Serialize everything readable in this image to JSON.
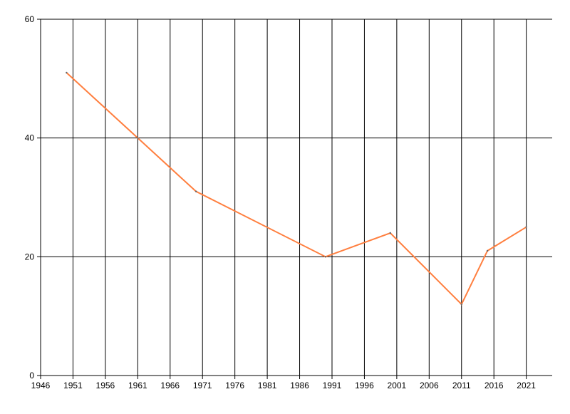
{
  "chart_data": {
    "type": "line",
    "title": "",
    "xlabel": "",
    "ylabel": "",
    "xlim": [
      1946,
      2025
    ],
    "ylim": [
      0,
      60
    ],
    "x_ticks": [
      1946,
      1951,
      1956,
      1961,
      1966,
      1971,
      1976,
      1981,
      1986,
      1991,
      1996,
      2001,
      2006,
      2011,
      2016,
      2021
    ],
    "y_ticks": [
      0,
      20,
      40,
      60
    ],
    "grid": true,
    "legend": "none",
    "series": [
      {
        "color": "#ff7f3f",
        "x": [
          1950,
          1961,
          1970,
          1990,
          2000,
          2011,
          2015,
          2021
        ],
        "y": [
          51,
          40,
          31,
          20,
          24,
          12,
          21,
          25
        ]
      }
    ]
  }
}
